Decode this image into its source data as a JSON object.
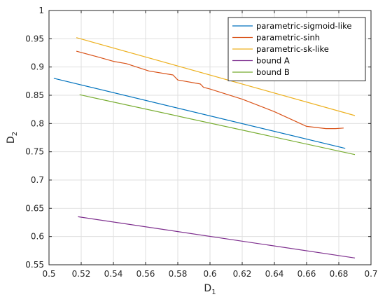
{
  "chart_data": {
    "type": "line",
    "title": "",
    "xlabel": "D",
    "xlabel_sub": "1",
    "ylabel": "D",
    "ylabel_sub": "2",
    "xlim": [
      0.5,
      0.7
    ],
    "ylim": [
      0.55,
      1.0
    ],
    "xticks": [
      "0.5",
      "0.52",
      "0.54",
      "0.56",
      "0.58",
      "0.6",
      "0.62",
      "0.64",
      "0.66",
      "0.68",
      "0.7"
    ],
    "yticks": [
      "0.55",
      "0.6",
      "0.65",
      "0.7",
      "0.75",
      "0.8",
      "0.85",
      "0.9",
      "0.95",
      "1"
    ],
    "grid": true,
    "legend_position": "top-right",
    "series": [
      {
        "name": "parametric-sigmoid-like",
        "color": "#0072BD",
        "x": [
          0.503,
          0.684
        ],
        "y": [
          0.88,
          0.756
        ]
      },
      {
        "name": "parametric-sinh",
        "color": "#D95319",
        "x": [
          0.517,
          0.53,
          0.54,
          0.548,
          0.562,
          0.577,
          0.58,
          0.594,
          0.596,
          0.6,
          0.62,
          0.64,
          0.66,
          0.672,
          0.678,
          0.683
        ],
        "y": [
          0.928,
          0.918,
          0.91,
          0.906,
          0.893,
          0.886,
          0.877,
          0.87,
          0.864,
          0.861,
          0.843,
          0.821,
          0.795,
          0.791,
          0.791,
          0.792
        ]
      },
      {
        "name": "parametric-sk-like",
        "color": "#EDB120",
        "x": [
          0.517,
          0.69
        ],
        "y": [
          0.952,
          0.814
        ]
      },
      {
        "name": "bound A",
        "color": "#7E2F8E",
        "x": [
          0.518,
          0.69
        ],
        "y": [
          0.635,
          0.562
        ]
      },
      {
        "name": "bound B",
        "color": "#77AC30",
        "x": [
          0.519,
          0.69
        ],
        "y": [
          0.851,
          0.745
        ]
      }
    ]
  }
}
